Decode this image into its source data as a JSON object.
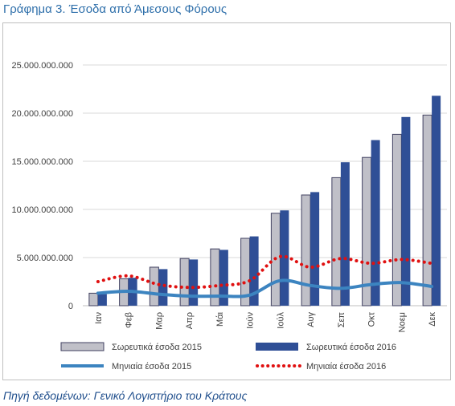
{
  "header": {
    "title": "Γράφημα 3. Έσοδα από Άμεσους Φόρους"
  },
  "footer": {
    "source": "Πηγή δεδομένων: Γενικό Λογιστήριο του Κράτους"
  },
  "colors": {
    "cum2015_fill": "#c0c0c8",
    "cum2015_stroke": "#404060",
    "cum2016": "#2f4f96",
    "month2015": "#3c84c0",
    "month2016": "#e01010",
    "grid": "#d9d9d9"
  },
  "chart_data": {
    "type": "bar",
    "title": "",
    "xlabel": "",
    "ylabel": "",
    "ylim": [
      0,
      25000000000
    ],
    "yticks": [
      {
        "value": 0,
        "label": "0"
      },
      {
        "value": 5000000000,
        "label": "5.000.000.000"
      },
      {
        "value": 10000000000,
        "label": "10.000.000.000"
      },
      {
        "value": 15000000000,
        "label": "15.000.000.000"
      },
      {
        "value": 20000000000,
        "label": "20.000.000.000"
      },
      {
        "value": 25000000000,
        "label": "25.000.000.000"
      }
    ],
    "categories": [
      "Ιαν",
      "Φεβ",
      "Μαρ",
      "Απρ",
      "Μάι",
      "Ιούν",
      "Ιούλ",
      "Αυγ",
      "Σεπ",
      "Οκτ",
      "Νοεμ",
      "Δεκ"
    ],
    "grid": true,
    "legend_position": "bottom",
    "series": [
      {
        "name": "Σωρευτικά έσοδα 2015",
        "kind": "bar",
        "values": [
          1300000000,
          2800000000,
          4000000000,
          4900000000,
          5900000000,
          7000000000,
          9600000000,
          11500000000,
          13300000000,
          15400000000,
          17800000000,
          19800000000
        ]
      },
      {
        "name": "Σωρευτικά έσοδα 2016",
        "kind": "bar",
        "values": [
          1200000000,
          2900000000,
          3800000000,
          4800000000,
          5800000000,
          7200000000,
          9900000000,
          11800000000,
          14900000000,
          17200000000,
          19600000000,
          21800000000
        ]
      },
      {
        "name": "Μηνιαία έσοδα 2015",
        "kind": "line",
        "values": [
          1300000000,
          1500000000,
          1200000000,
          1000000000,
          1000000000,
          1100000000,
          2600000000,
          2100000000,
          1800000000,
          2200000000,
          2400000000,
          2000000000
        ]
      },
      {
        "name": "Μηνιαία έσοδα 2016",
        "kind": "dotted-line",
        "values": [
          2500000000,
          3100000000,
          2200000000,
          1900000000,
          2100000000,
          2600000000,
          5100000000,
          4000000000,
          4900000000,
          4400000000,
          4800000000,
          4400000000
        ]
      }
    ]
  }
}
